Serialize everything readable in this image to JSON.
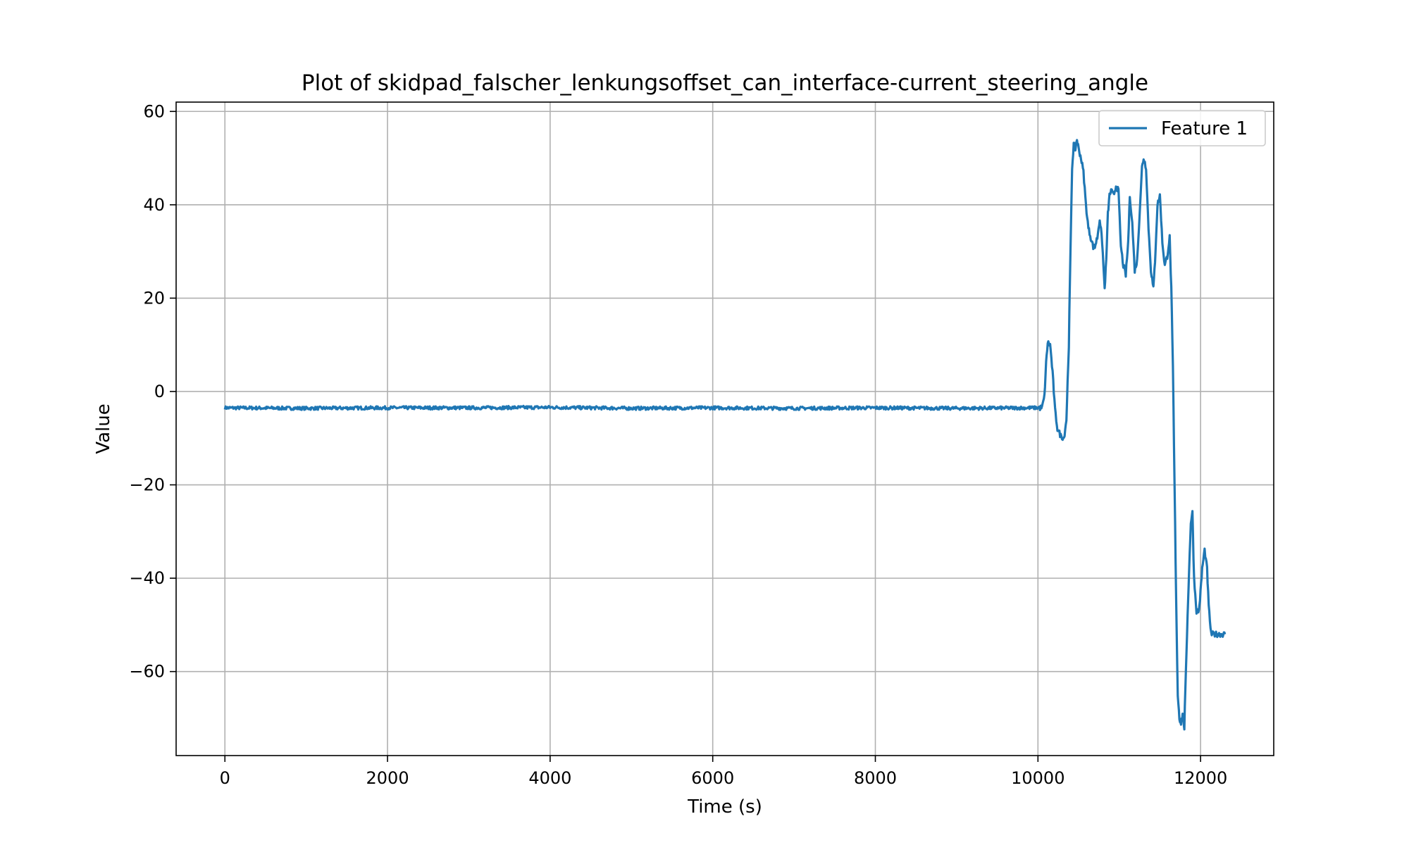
{
  "chart_data": {
    "type": "line",
    "title": "Plot of skidpad_falscher_lenkungsoffset_can_interface-current_steering_angle",
    "xlabel": "Time (s)",
    "ylabel": "Value",
    "xlim": [
      -600,
      12900
    ],
    "ylim": [
      -78,
      62
    ],
    "xticks": [
      0,
      2000,
      4000,
      6000,
      8000,
      10000,
      12000
    ],
    "xtick_labels": [
      "0",
      "2000",
      "4000",
      "6000",
      "8000",
      "10000",
      "12000"
    ],
    "yticks": [
      60,
      40,
      20,
      0,
      -20,
      -40,
      -60
    ],
    "ytick_labels": [
      "60",
      "40",
      "20",
      "0",
      "−20",
      "−40",
      "−60"
    ],
    "grid": true,
    "legend_position": "upper right",
    "colors": {
      "series": "#1f77b4"
    },
    "series": [
      {
        "name": "Feature 1",
        "x": [
          0,
          1000,
          2000,
          3000,
          4000,
          5000,
          6000,
          7000,
          8000,
          9000,
          10000,
          10050,
          10080,
          10100,
          10120,
          10150,
          10180,
          10210,
          10240,
          10280,
          10320,
          10350,
          10380,
          10400,
          10420,
          10440,
          10460,
          10480,
          10500,
          10530,
          10560,
          10590,
          10620,
          10650,
          10680,
          10700,
          10730,
          10760,
          10790,
          10820,
          10840,
          10860,
          10880,
          10900,
          10930,
          10960,
          10990,
          11020,
          11050,
          11080,
          11110,
          11130,
          11160,
          11190,
          11220,
          11250,
          11280,
          11300,
          11330,
          11360,
          11390,
          11420,
          11440,
          11470,
          11500,
          11530,
          11560,
          11590,
          11620,
          11640,
          11660,
          11680,
          11700,
          11720,
          11740,
          11760,
          11780,
          11800,
          11820,
          11840,
          11860,
          11880,
          11900,
          11920,
          11950,
          11980,
          12000,
          12020,
          12050,
          12080,
          12100,
          12130,
          12160,
          12190,
          12220,
          12250,
          12280,
          12300
        ],
        "y": [
          -3.5,
          -3.6,
          -3.5,
          -3.5,
          -3.4,
          -3.6,
          -3.5,
          -3.6,
          -3.5,
          -3.6,
          -3.5,
          -3.5,
          -1,
          6,
          10.5,
          10,
          4,
          -4,
          -8,
          -9.5,
          -10,
          -6,
          10,
          30,
          48,
          53,
          52,
          54,
          52,
          50,
          47,
          40,
          35,
          33,
          31,
          31,
          33,
          37,
          32,
          22,
          28,
          38,
          42,
          43,
          42,
          44,
          43,
          31,
          27,
          25,
          32,
          42,
          36,
          26,
          28,
          38,
          48,
          50,
          48,
          35,
          26,
          22,
          28,
          40,
          42,
          32,
          27,
          29,
          33,
          22,
          5,
          -20,
          -45,
          -65,
          -70,
          -71,
          -69,
          -72,
          -60,
          -48,
          -38,
          -28,
          -26,
          -40,
          -47,
          -47,
          -43,
          -38,
          -34,
          -38,
          -46,
          -52,
          -52,
          -52,
          -52,
          -52,
          -52,
          -52
        ]
      }
    ]
  }
}
